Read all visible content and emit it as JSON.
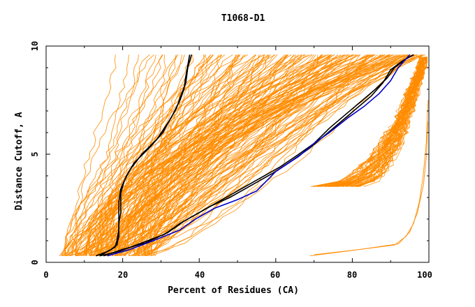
{
  "chart_data": {
    "type": "line",
    "title": "T1068-D1",
    "xlabel": "Percent of Residues (CA)",
    "ylabel": "Distance Cutoff, A",
    "xlim": [
      0,
      100
    ],
    "ylim": [
      0,
      10
    ],
    "x_ticks": [
      "0",
      "20",
      "40",
      "60",
      "80",
      "100"
    ],
    "y_ticks": [
      "0",
      "5",
      "10"
    ],
    "grid": false,
    "colors": {
      "background_series": "#ff8c00",
      "highlight_black": "#000000",
      "highlight_blue": "#0000cc"
    },
    "highlight_series": [
      {
        "color": "#000000",
        "points": [
          [
            14,
            0.3
          ],
          [
            17,
            0.6
          ],
          [
            18.5,
            0.8
          ],
          [
            19,
            1.2
          ],
          [
            19,
            1.8
          ],
          [
            19.5,
            2.3
          ],
          [
            19.5,
            3.2
          ],
          [
            20.5,
            3.8
          ],
          [
            22,
            4.3
          ],
          [
            25,
            5
          ],
          [
            29,
            5.7
          ],
          [
            32,
            6.5
          ],
          [
            34,
            7.1
          ],
          [
            35,
            7.6
          ],
          [
            36.5,
            8.3
          ],
          [
            37,
            9
          ],
          [
            38,
            9.6
          ]
        ]
      },
      {
        "color": "#000000",
        "points": [
          [
            13,
            0.3
          ],
          [
            16,
            0.5
          ],
          [
            18,
            0.7
          ],
          [
            18.5,
            1.0
          ],
          [
            19,
            1.5
          ],
          [
            19,
            2.0
          ],
          [
            19,
            2.8
          ],
          [
            19.5,
            3.4
          ],
          [
            21,
            4.0
          ],
          [
            23,
            4.6
          ],
          [
            27,
            5.3
          ],
          [
            30.5,
            6.0
          ],
          [
            33,
            6.8
          ],
          [
            35,
            7.5
          ],
          [
            36,
            8.0
          ],
          [
            36.5,
            8.6
          ],
          [
            37.5,
            9.6
          ]
        ]
      },
      {
        "color": "#000000",
        "points": [
          [
            15,
            0.3
          ],
          [
            20,
            0.6
          ],
          [
            26,
            0.9
          ],
          [
            32,
            1.4
          ],
          [
            36,
            1.9
          ],
          [
            40,
            2.3
          ],
          [
            45,
            2.8
          ],
          [
            50,
            3.3
          ],
          [
            56,
            3.9
          ],
          [
            61,
            4.4
          ],
          [
            66,
            5.0
          ],
          [
            70,
            5.5
          ],
          [
            74,
            6.2
          ],
          [
            78,
            6.8
          ],
          [
            82,
            7.4
          ],
          [
            86,
            8.0
          ],
          [
            89,
            8.5
          ],
          [
            91,
            9.0
          ],
          [
            94,
            9.4
          ],
          [
            96,
            9.6
          ]
        ]
      },
      {
        "color": "#000000",
        "points": [
          [
            14,
            0.3
          ],
          [
            19,
            0.5
          ],
          [
            25,
            0.9
          ],
          [
            31,
            1.3
          ],
          [
            35,
            1.8
          ],
          [
            39,
            2.2
          ],
          [
            43,
            2.6
          ],
          [
            48,
            3.0
          ],
          [
            54,
            3.6
          ],
          [
            60,
            4.2
          ],
          [
            65,
            4.8
          ],
          [
            69,
            5.3
          ],
          [
            73,
            5.9
          ],
          [
            77,
            6.5
          ],
          [
            81,
            7.1
          ],
          [
            85,
            7.7
          ],
          [
            88,
            8.3
          ],
          [
            90,
            8.9
          ],
          [
            93,
            9.3
          ],
          [
            96,
            9.6
          ]
        ]
      },
      {
        "color": "#0000cc",
        "points": [
          [
            16,
            0.3
          ],
          [
            22,
            0.6
          ],
          [
            28,
            1.0
          ],
          [
            35,
            1.5
          ],
          [
            39,
            2.0
          ],
          [
            44,
            2.5
          ],
          [
            50,
            2.9
          ],
          [
            55,
            3.3
          ],
          [
            60,
            4.2
          ],
          [
            66,
            4.9
          ],
          [
            70,
            5.5
          ],
          [
            74,
            6.0
          ],
          [
            79,
            6.7
          ],
          [
            83,
            7.2
          ],
          [
            87,
            7.8
          ],
          [
            90,
            8.4
          ],
          [
            92,
            9.0
          ],
          [
            95,
            9.6
          ]
        ]
      }
    ]
  }
}
